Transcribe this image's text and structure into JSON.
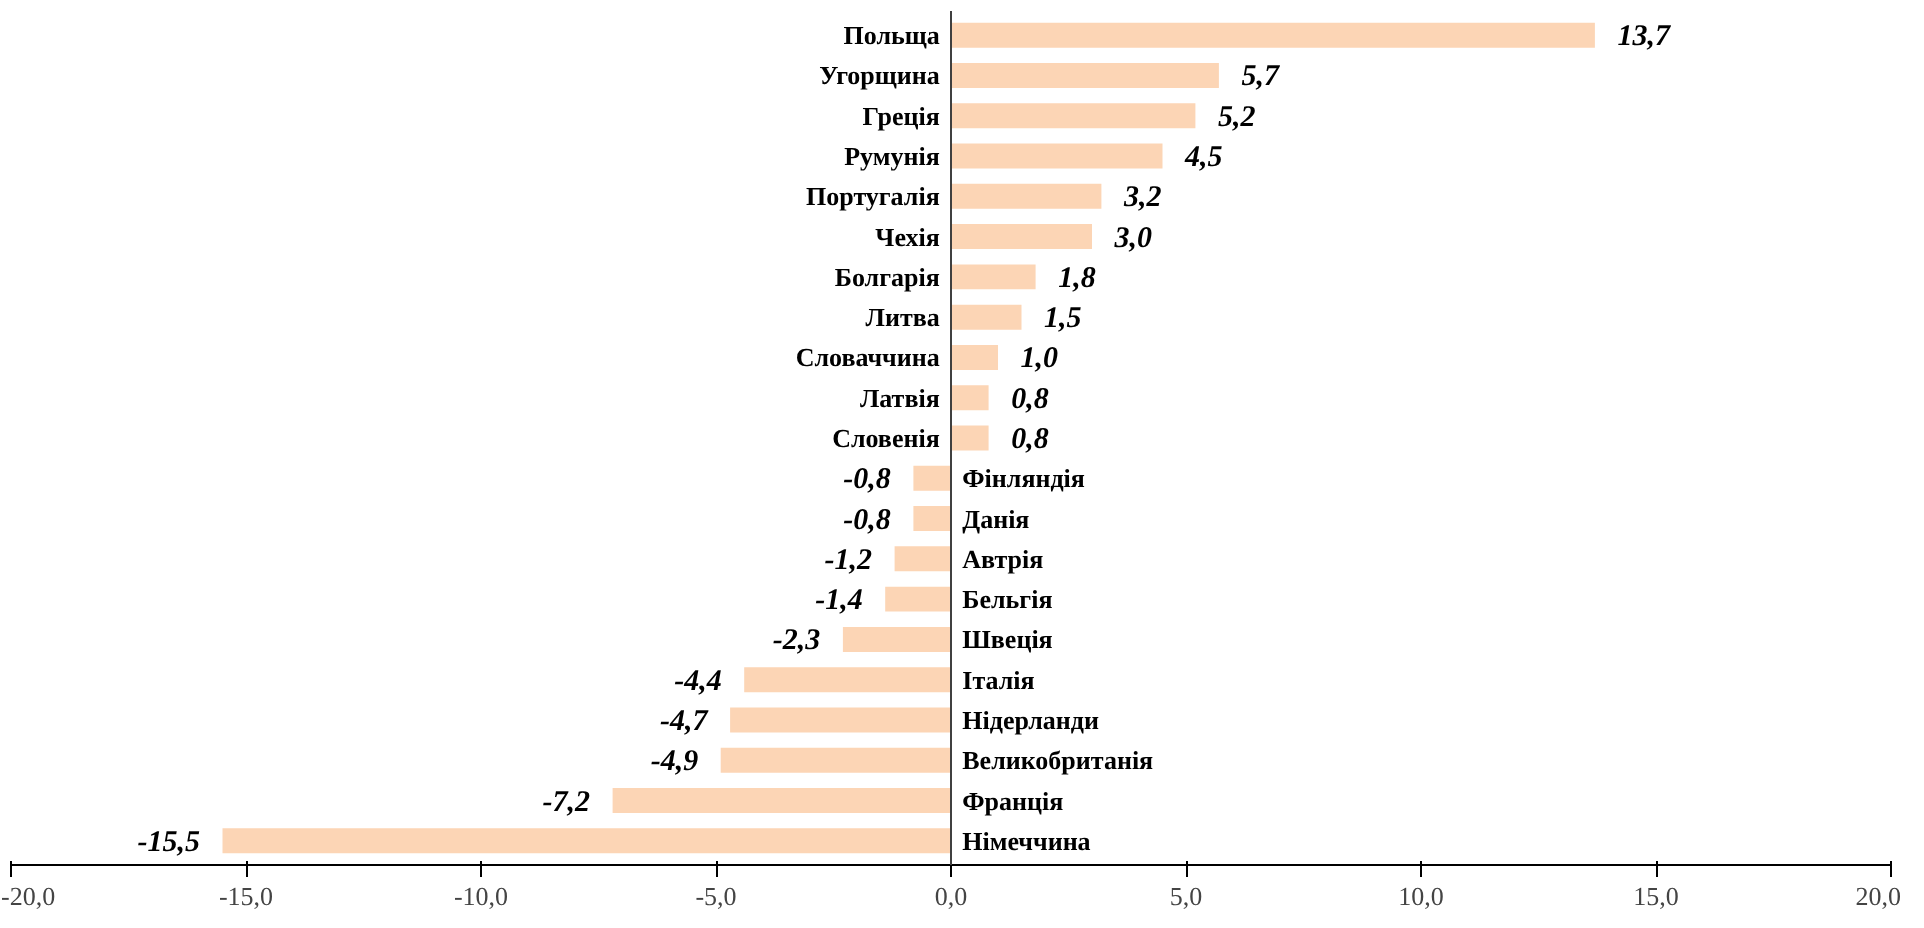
{
  "chart_data": {
    "type": "bar",
    "orientation": "horizontal",
    "categories": [
      "Польща",
      "Угорщина",
      "Греція",
      "Румунія",
      "Португалія",
      "Чехія",
      "Болгарія",
      "Литва",
      "Словаччина",
      "Латвія",
      "Словенія",
      "Фінляндія",
      "Данія",
      "Автрія",
      "Бельгія",
      "Швеція",
      "Італія",
      "Нідерланди",
      "Великобританія",
      "Франція",
      "Німеччина"
    ],
    "values": [
      13.7,
      5.7,
      5.2,
      4.5,
      3.2,
      3.0,
      1.8,
      1.5,
      1.0,
      0.8,
      0.8,
      -0.8,
      -0.8,
      -1.2,
      -1.4,
      -2.3,
      -4.4,
      -4.7,
      -4.9,
      -7.2,
      -15.5
    ],
    "value_labels": [
      "13,7",
      "5,7",
      "5,2",
      "4,5",
      "3,2",
      "3,0",
      "1,8",
      "1,5",
      "1,0",
      "0,8",
      "0,8",
      "-0,8",
      "-0,8",
      "-1,2",
      "-1,4",
      "-2,3",
      "-4,4",
      "-4,7",
      "-4,9",
      "-7,2",
      "-15,5"
    ],
    "color": "#fcd5b5",
    "xlim": [
      -20,
      20
    ],
    "xticks": [
      {
        "value": -20,
        "label": "-20,0"
      },
      {
        "value": -15,
        "label": "-15,0"
      },
      {
        "value": -10,
        "label": "-10,0"
      },
      {
        "value": -5,
        "label": "-5,0"
      },
      {
        "value": 0,
        "label": "0,0"
      },
      {
        "value": 5,
        "label": "5,0"
      },
      {
        "value": 10,
        "label": "10,0"
      },
      {
        "value": 15,
        "label": "15,0"
      },
      {
        "value": 20,
        "label": "20,0"
      }
    ],
    "data_labels": true
  }
}
